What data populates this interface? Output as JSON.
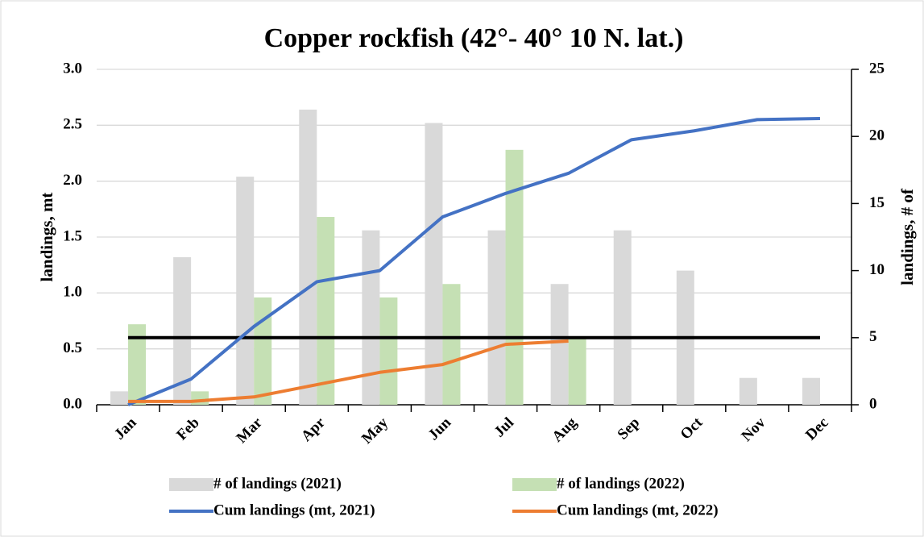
{
  "chart_data": {
    "type": "bar",
    "title": "Copper rockfish (42°- 40° 10 N. lat.)",
    "y_label": "landings, mt",
    "y2_label": "landings, # of",
    "categories": [
      "Jan",
      "Feb",
      "Mar",
      "Apr",
      "May",
      "Jun",
      "Jul",
      "Aug",
      "Sep",
      "Oct",
      "Nov",
      "Dec"
    ],
    "series": [
      {
        "name": "# of landings (2021)",
        "type": "bar",
        "axis": "y2",
        "color": "#d9d9d9",
        "values": [
          1,
          11,
          17,
          22,
          13,
          21,
          13,
          9,
          13,
          10,
          2,
          2
        ]
      },
      {
        "name": "# of landings (2022)",
        "type": "bar",
        "axis": "y2",
        "color": "#c5e0b4",
        "values": [
          6,
          1,
          8,
          14,
          8,
          9,
          19,
          5,
          null,
          null,
          null,
          null
        ]
      },
      {
        "name": "Cum landings (mt, 2021)",
        "type": "line",
        "axis": "y",
        "color": "#4472c4",
        "values": [
          0.0,
          0.23,
          0.7,
          1.1,
          1.2,
          1.68,
          1.89,
          2.07,
          2.37,
          2.45,
          2.55,
          2.56
        ]
      },
      {
        "name": "Cum landings (mt, 2022)",
        "type": "line",
        "axis": "y",
        "color": "#ed7d31",
        "values": [
          0.03,
          0.03,
          0.07,
          0.18,
          0.29,
          0.36,
          0.54,
          0.57,
          null,
          null,
          null,
          null
        ]
      }
    ],
    "reference_line": {
      "value": 0.6,
      "color": "#000000"
    },
    "ylim": [
      0,
      3
    ],
    "yticks": [
      {
        "value": 0,
        "label": "0.0"
      },
      0.5,
      {
        "value": 1,
        "label": "1.0"
      },
      1.5,
      {
        "value": 2,
        "label": "2.0"
      },
      2.5,
      {
        "value": 3,
        "label": "3.0"
      }
    ],
    "y2lim": [
      0,
      25
    ],
    "y2ticks": [
      0,
      5,
      10,
      15,
      20,
      25
    ],
    "grid": true,
    "legend": "bottom"
  }
}
